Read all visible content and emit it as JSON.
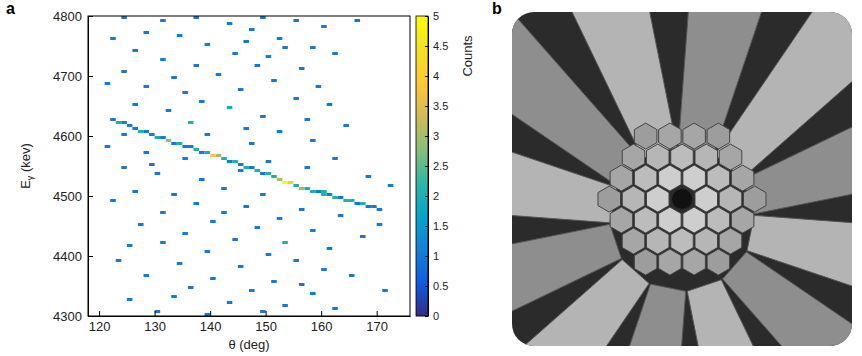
{
  "panel_labels": [
    "a",
    "b"
  ],
  "chart_data": {
    "type": "heatmap",
    "x_label": "θ (deg)",
    "y_label": "Eγ (kev)",
    "xlim": [
      118,
      176
    ],
    "ylim": [
      4300,
      4800
    ],
    "xticks": [
      120,
      130,
      140,
      150,
      160,
      170
    ],
    "yticks": [
      4300,
      4400,
      4500,
      4600,
      4700,
      4800
    ],
    "x_bin": 1,
    "y_bin": 5,
    "cells": [
      [
        124,
        4795,
        1
      ],
      [
        131,
        4790,
        1
      ],
      [
        137,
        4795,
        1
      ],
      [
        143,
        4785,
        1
      ],
      [
        149,
        4795,
        1
      ],
      [
        155,
        4790,
        1
      ],
      [
        160,
        4780,
        1
      ],
      [
        147,
        4775,
        1
      ],
      [
        128,
        4770,
        1
      ],
      [
        166,
        4790,
        1
      ],
      [
        122,
        4760,
        1
      ],
      [
        134,
        4765,
        1
      ],
      [
        139,
        4750,
        1
      ],
      [
        146,
        4755,
        1
      ],
      [
        152,
        4760,
        1
      ],
      [
        158,
        4745,
        1
      ],
      [
        126,
        4740,
        1
      ],
      [
        144,
        4735,
        1
      ],
      [
        131,
        4725,
        1
      ],
      [
        150,
        4730,
        1
      ],
      [
        162,
        4735,
        1
      ],
      [
        137,
        4715,
        1
      ],
      [
        124,
        4705,
        1
      ],
      [
        141,
        4700,
        1
      ],
      [
        156,
        4710,
        1
      ],
      [
        133,
        4695,
        1
      ],
      [
        148,
        4715,
        1
      ],
      [
        153,
        4745,
        1
      ],
      [
        121,
        4685,
        1
      ],
      [
        128,
        4680,
        1
      ],
      [
        135,
        4670,
        1
      ],
      [
        145,
        4675,
        1
      ],
      [
        151,
        4690,
        1
      ],
      [
        159,
        4680,
        1
      ],
      [
        138,
        4655,
        1
      ],
      [
        126,
        4650,
        1
      ],
      [
        143,
        4645,
        2
      ],
      [
        155,
        4660,
        1
      ],
      [
        132,
        4640,
        1
      ],
      [
        149,
        4630,
        1
      ],
      [
        161,
        4650,
        1
      ],
      [
        136,
        4620,
        2
      ],
      [
        157,
        4625,
        1
      ],
      [
        146,
        4610,
        1
      ],
      [
        124,
        4600,
        1
      ],
      [
        152,
        4605,
        1
      ],
      [
        164,
        4615,
        1
      ],
      [
        139,
        4600,
        1
      ],
      [
        121,
        4580,
        1
      ],
      [
        128,
        4570,
        1
      ],
      [
        147,
        4585,
        1
      ],
      [
        158,
        4590,
        1
      ],
      [
        135,
        4560,
        1
      ],
      [
        162,
        4560,
        1
      ],
      [
        150,
        4555,
        1
      ],
      [
        124,
        4545,
        1
      ],
      [
        130,
        4535,
        1
      ],
      [
        145,
        4540,
        1
      ],
      [
        157,
        4545,
        1
      ],
      [
        138,
        4525,
        1
      ],
      [
        168,
        4530,
        1
      ],
      [
        142,
        4510,
        1
      ],
      [
        126,
        4505,
        1
      ],
      [
        133,
        4500,
        1
      ],
      [
        149,
        4500,
        1
      ],
      [
        160,
        4505,
        2
      ],
      [
        172,
        4515,
        1
      ],
      [
        129,
        4550,
        1
      ],
      [
        122,
        4490,
        1
      ],
      [
        137,
        4485,
        1
      ],
      [
        146,
        4480,
        1
      ],
      [
        156,
        4475,
        1
      ],
      [
        131,
        4470,
        1
      ],
      [
        152,
        4460,
        1
      ],
      [
        140,
        4455,
        1
      ],
      [
        163,
        4465,
        1
      ],
      [
        127,
        4450,
        1
      ],
      [
        148,
        4445,
        1
      ],
      [
        158,
        4440,
        1
      ],
      [
        135,
        4435,
        1
      ],
      [
        144,
        4425,
        1
      ],
      [
        153,
        4420,
        2
      ],
      [
        167,
        4430,
        1
      ],
      [
        125,
        4415,
        1
      ],
      [
        139,
        4405,
        1
      ],
      [
        150,
        4400,
        1
      ],
      [
        161,
        4410,
        1
      ],
      [
        131,
        4420,
        1
      ],
      [
        142,
        4470,
        1
      ],
      [
        170,
        4450,
        1
      ],
      [
        123,
        4390,
        1
      ],
      [
        134,
        4385,
        1
      ],
      [
        145,
        4380,
        1
      ],
      [
        155,
        4390,
        1
      ],
      [
        160,
        4375,
        1
      ],
      [
        128,
        4365,
        1
      ],
      [
        140,
        4360,
        1
      ],
      [
        151,
        4355,
        1
      ],
      [
        165,
        4365,
        1
      ],
      [
        136,
        4345,
        1
      ],
      [
        147,
        4340,
        1
      ],
      [
        158,
        4335,
        1
      ],
      [
        125,
        4325,
        1
      ],
      [
        143,
        4320,
        1
      ],
      [
        153,
        4315,
        1
      ],
      [
        130,
        4305,
        1
      ],
      [
        139,
        4300,
        1
      ],
      [
        149,
        4305,
        1
      ],
      [
        162,
        4310,
        1
      ],
      [
        156,
        4350,
        1
      ],
      [
        133,
        4330,
        1
      ],
      [
        171,
        4340,
        1
      ],
      [
        122,
        4625,
        1
      ],
      [
        123,
        4620,
        2
      ],
      [
        124,
        4620,
        1
      ],
      [
        125,
        4615,
        1
      ],
      [
        126,
        4610,
        1
      ],
      [
        127,
        4605,
        2
      ],
      [
        128,
        4605,
        1
      ],
      [
        129,
        4600,
        1
      ],
      [
        130,
        4595,
        2
      ],
      [
        131,
        4595,
        1
      ],
      [
        132,
        4590,
        3
      ],
      [
        133,
        4585,
        1
      ],
      [
        134,
        4585,
        2
      ],
      [
        135,
        4580,
        1
      ],
      [
        136,
        4580,
        1
      ],
      [
        137,
        4575,
        2
      ],
      [
        138,
        4570,
        1
      ],
      [
        139,
        4570,
        2
      ],
      [
        140,
        4565,
        4
      ],
      [
        141,
        4565,
        3
      ],
      [
        142,
        4560,
        2
      ],
      [
        143,
        4555,
        1
      ],
      [
        144,
        4555,
        2
      ],
      [
        145,
        4550,
        1
      ],
      [
        146,
        4545,
        2
      ],
      [
        147,
        4545,
        1
      ],
      [
        148,
        4540,
        2
      ],
      [
        149,
        4535,
        1
      ],
      [
        150,
        4535,
        2
      ],
      [
        151,
        4530,
        2
      ],
      [
        152,
        4525,
        3
      ],
      [
        153,
        4520,
        5
      ],
      [
        154,
        4520,
        4
      ],
      [
        155,
        4515,
        2
      ],
      [
        156,
        4510,
        3
      ],
      [
        157,
        4510,
        2
      ],
      [
        158,
        4505,
        2
      ],
      [
        159,
        4505,
        1
      ],
      [
        160,
        4500,
        2
      ],
      [
        161,
        4500,
        1
      ],
      [
        162,
        4495,
        2
      ],
      [
        163,
        4495,
        1
      ],
      [
        164,
        4490,
        2
      ],
      [
        165,
        4490,
        2
      ],
      [
        166,
        4485,
        1
      ],
      [
        167,
        4485,
        2
      ],
      [
        168,
        4480,
        1
      ],
      [
        169,
        4480,
        1
      ],
      [
        170,
        4475,
        1
      ]
    ],
    "colorbar": {
      "label": "Counts",
      "range": [
        0,
        5
      ],
      "ticks": [
        0,
        0.5,
        1,
        1.5,
        2,
        2.5,
        3,
        3.5,
        4,
        4.5,
        5
      ]
    }
  }
}
